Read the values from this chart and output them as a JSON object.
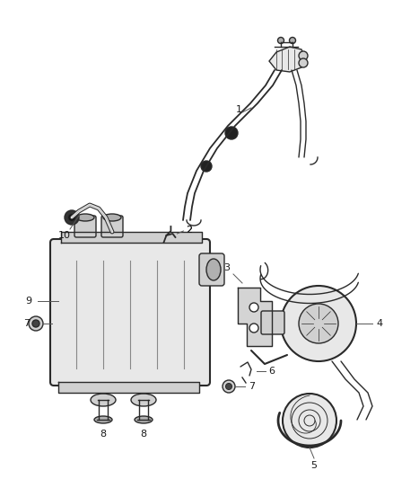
{
  "background_color": "#ffffff",
  "fig_width": 4.38,
  "fig_height": 5.33,
  "dpi": 100,
  "line_color": "#2a2a2a",
  "text_color": "#1a1a1a",
  "fill_light": "#e8e8e8",
  "fill_mid": "#d0d0d0",
  "fill_dark": "#b0b0b0",
  "leader_color": "#555555"
}
